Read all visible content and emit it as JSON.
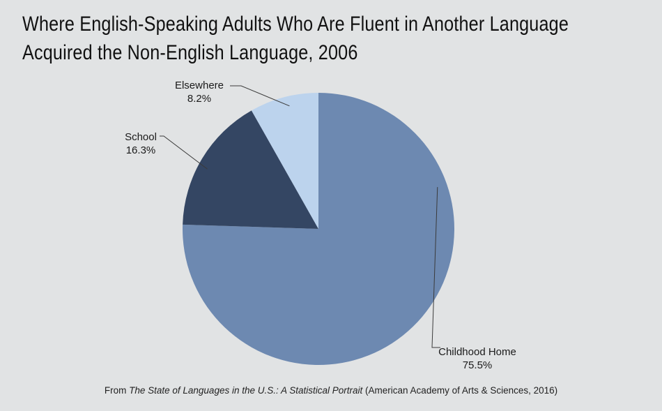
{
  "header": {
    "title_line1": "Where English-Speaking Adults Who Are Fluent in Another Language",
    "title_line2": "Acquired the Non-English Language, 2006"
  },
  "source": {
    "prefix": "From ",
    "work": "The State of Languages in the U.S.: A Statistical Portrait",
    "suffix": " (American Academy of Arts & Sciences, 2016)"
  },
  "colors": {
    "background": "#e1e3e4",
    "childhood_home": "#6d89b1",
    "school": "#344663",
    "elsewhere": "#bcd3ed"
  },
  "chart_data": {
    "type": "pie",
    "title": "Where English-Speaking Adults Who Are Fluent in Another Language Acquired the Non-English Language, 2006",
    "start": "12 o'clock",
    "direction": "clockwise",
    "slices": [
      {
        "label": "Childhood Home",
        "value": 75.5,
        "value_label": "75.5%",
        "color": "#6d89b1"
      },
      {
        "label": "School",
        "value": 16.3,
        "value_label": "16.3%",
        "color": "#344663"
      },
      {
        "label": "Elsewhere",
        "value": 8.2,
        "value_label": "8.2%",
        "color": "#bcd3ed"
      }
    ]
  }
}
